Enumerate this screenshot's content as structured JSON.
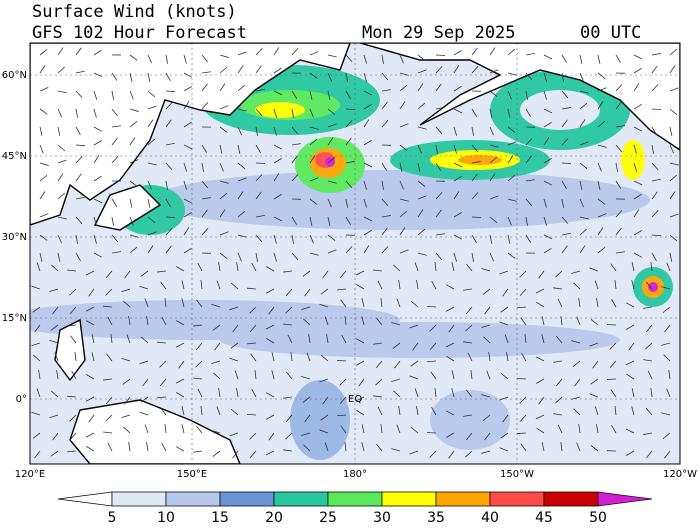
{
  "header": {
    "title": "Surface Wind (knots)",
    "subtitle": "GFS 102 Hour Forecast",
    "date": "Mon 29 Sep 2025",
    "time": "00 UTC"
  },
  "map": {
    "lat_labels": [
      "60°N",
      "45°N",
      "30°N",
      "15°N",
      "0°"
    ],
    "lon_labels": [
      "120°E",
      "150°E",
      "180°",
      "150°W",
      "120°W"
    ],
    "equator_label": "EQ"
  },
  "colorbar": {
    "levels": [
      5,
      10,
      15,
      20,
      25,
      30,
      35,
      40,
      45,
      50
    ],
    "colors": [
      "#ffffff",
      "#e2e9f6",
      "#b7c9ec",
      "#6a94d8",
      "#27c7a0",
      "#5be95b",
      "#ffff00",
      "#ffa500",
      "#ff4a4a",
      "#c80000",
      "#d21ed2"
    ]
  }
}
